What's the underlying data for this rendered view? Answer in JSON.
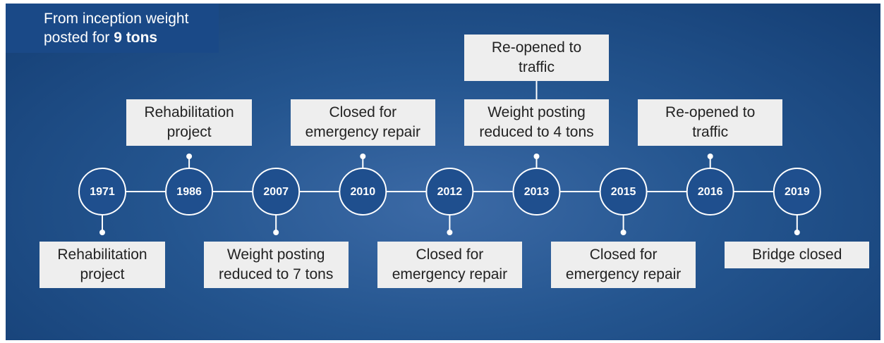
{
  "header": {
    "text": "From inception weight posted for",
    "bold": "9 tons"
  },
  "nodes": [
    {
      "year": "1971",
      "below": [
        "Rehabilitation project"
      ]
    },
    {
      "year": "1986",
      "above": [
        "Rehabilitation project"
      ]
    },
    {
      "year": "2007",
      "below": [
        "Weight posting reduced to 7 tons"
      ]
    },
    {
      "year": "2010",
      "above": [
        "Closed for emergency repair"
      ]
    },
    {
      "year": "2012",
      "below": [
        "Closed for emergency repair"
      ]
    },
    {
      "year": "2013",
      "above": [
        "Weight posting reduced to 4 tons",
        "Re-opened to traffic"
      ]
    },
    {
      "year": "2015",
      "below": [
        "Closed for emergency repair"
      ]
    },
    {
      "year": "2016",
      "above": [
        "Re-opened to traffic"
      ]
    },
    {
      "year": "2019",
      "below": [
        "Bridge closed"
      ]
    }
  ]
}
